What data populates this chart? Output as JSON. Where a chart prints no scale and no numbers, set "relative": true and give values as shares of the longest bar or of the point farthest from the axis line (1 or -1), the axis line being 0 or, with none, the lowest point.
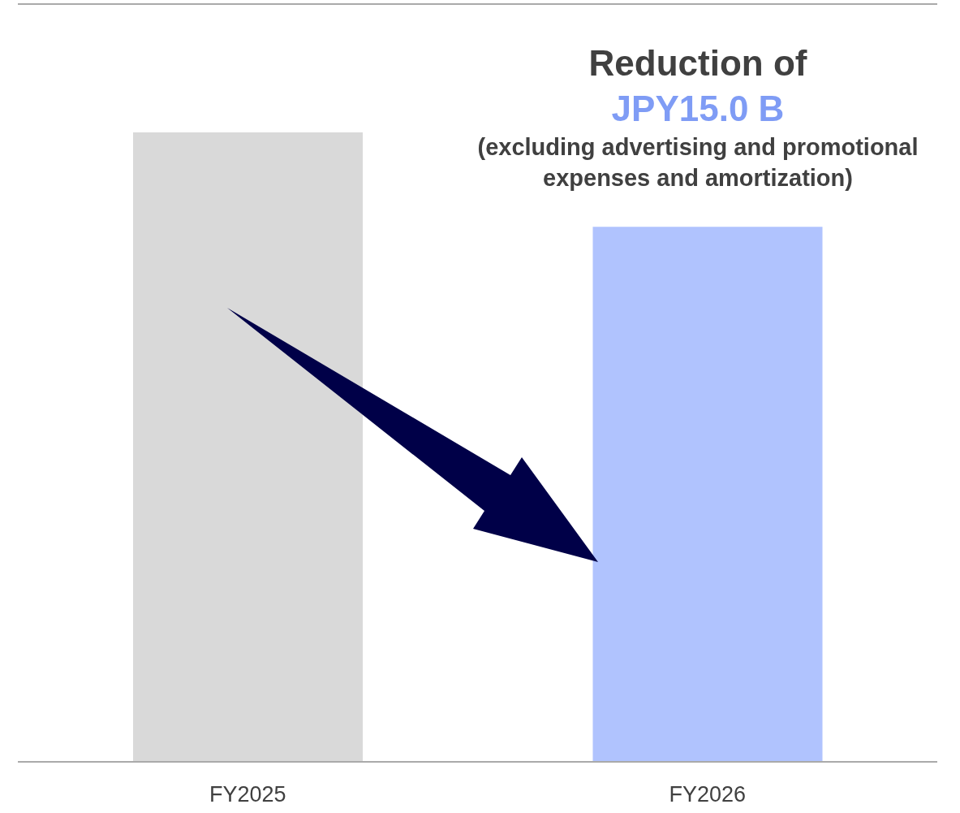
{
  "chart_data": {
    "type": "bar",
    "relative": true,
    "categories": [
      "FY2025",
      "FY2026"
    ],
    "values": [
      1,
      0.85
    ],
    "colors": [
      "#d9d9d9",
      "#b0c3fe"
    ],
    "annotations": [
      "Reduction of",
      "JPY15.0 B",
      "(excluding advertising and promotional expenses and amortization)"
    ],
    "legend": false,
    "grid": false
  }
}
